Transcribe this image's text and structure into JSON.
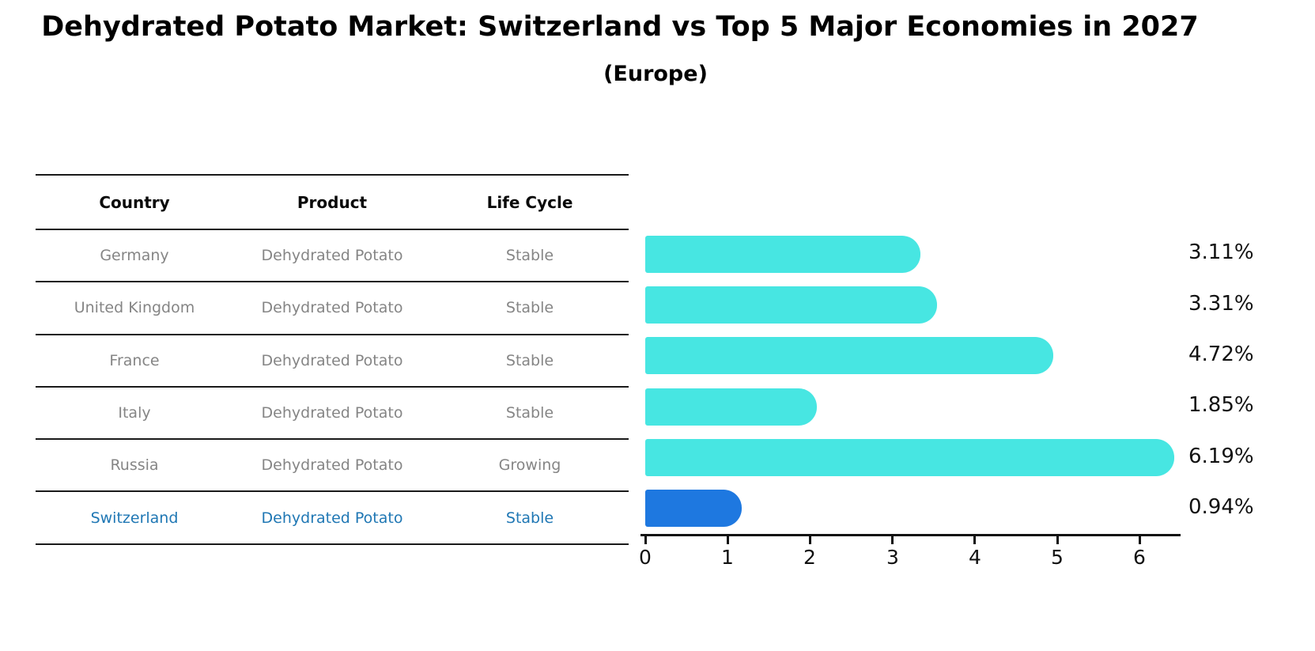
{
  "title": "Dehydrated Potato Market: Switzerland vs Top 5 Major Economies in 2027",
  "subtitle": "(Europe)",
  "table": {
    "columns": [
      "Country",
      "Product",
      "Life Cycle"
    ],
    "rows": [
      [
        "Germany",
        "Dehydrated Potato",
        "Stable"
      ],
      [
        "United Kingdom",
        "Dehydrated Potato",
        "Stable"
      ],
      [
        "France",
        "Dehydrated Potato",
        "Stable"
      ],
      [
        "Italy",
        "Dehydrated Potato",
        "Stable"
      ],
      [
        "Russia",
        "Dehydrated Potato",
        "Growing"
      ],
      [
        "Switzerland",
        "Dehydrated Potato",
        "Stable"
      ]
    ],
    "highlight_row_index": 5
  },
  "chart_data": {
    "type": "bar",
    "orientation": "horizontal",
    "title": "Dehydrated Potato Market: Switzerland vs Top 5 Major Economies in 2027",
    "subtitle": "(Europe)",
    "categories": [
      "Germany",
      "United Kingdom",
      "France",
      "Italy",
      "Russia",
      "Switzerland"
    ],
    "values": [
      3.11,
      3.31,
      4.72,
      1.85,
      6.19,
      0.94
    ],
    "value_labels": [
      "3.11%",
      "3.31%",
      "4.72%",
      "1.85%",
      "6.19%",
      "0.94%"
    ],
    "x_tick_labels": [
      "0",
      "1",
      "2",
      "3",
      "4",
      "5",
      "6"
    ],
    "xlim": [
      0,
      6.5
    ],
    "grid": false,
    "legend": false,
    "highlight_index": 5
  },
  "colors": {
    "bar": "#47E6E2",
    "highlight_bar": "#1E78E0",
    "highlight_text": "#1F77B4",
    "table_text": "#858585",
    "header_text": "#0A0A0A",
    "axis": "#111111"
  }
}
